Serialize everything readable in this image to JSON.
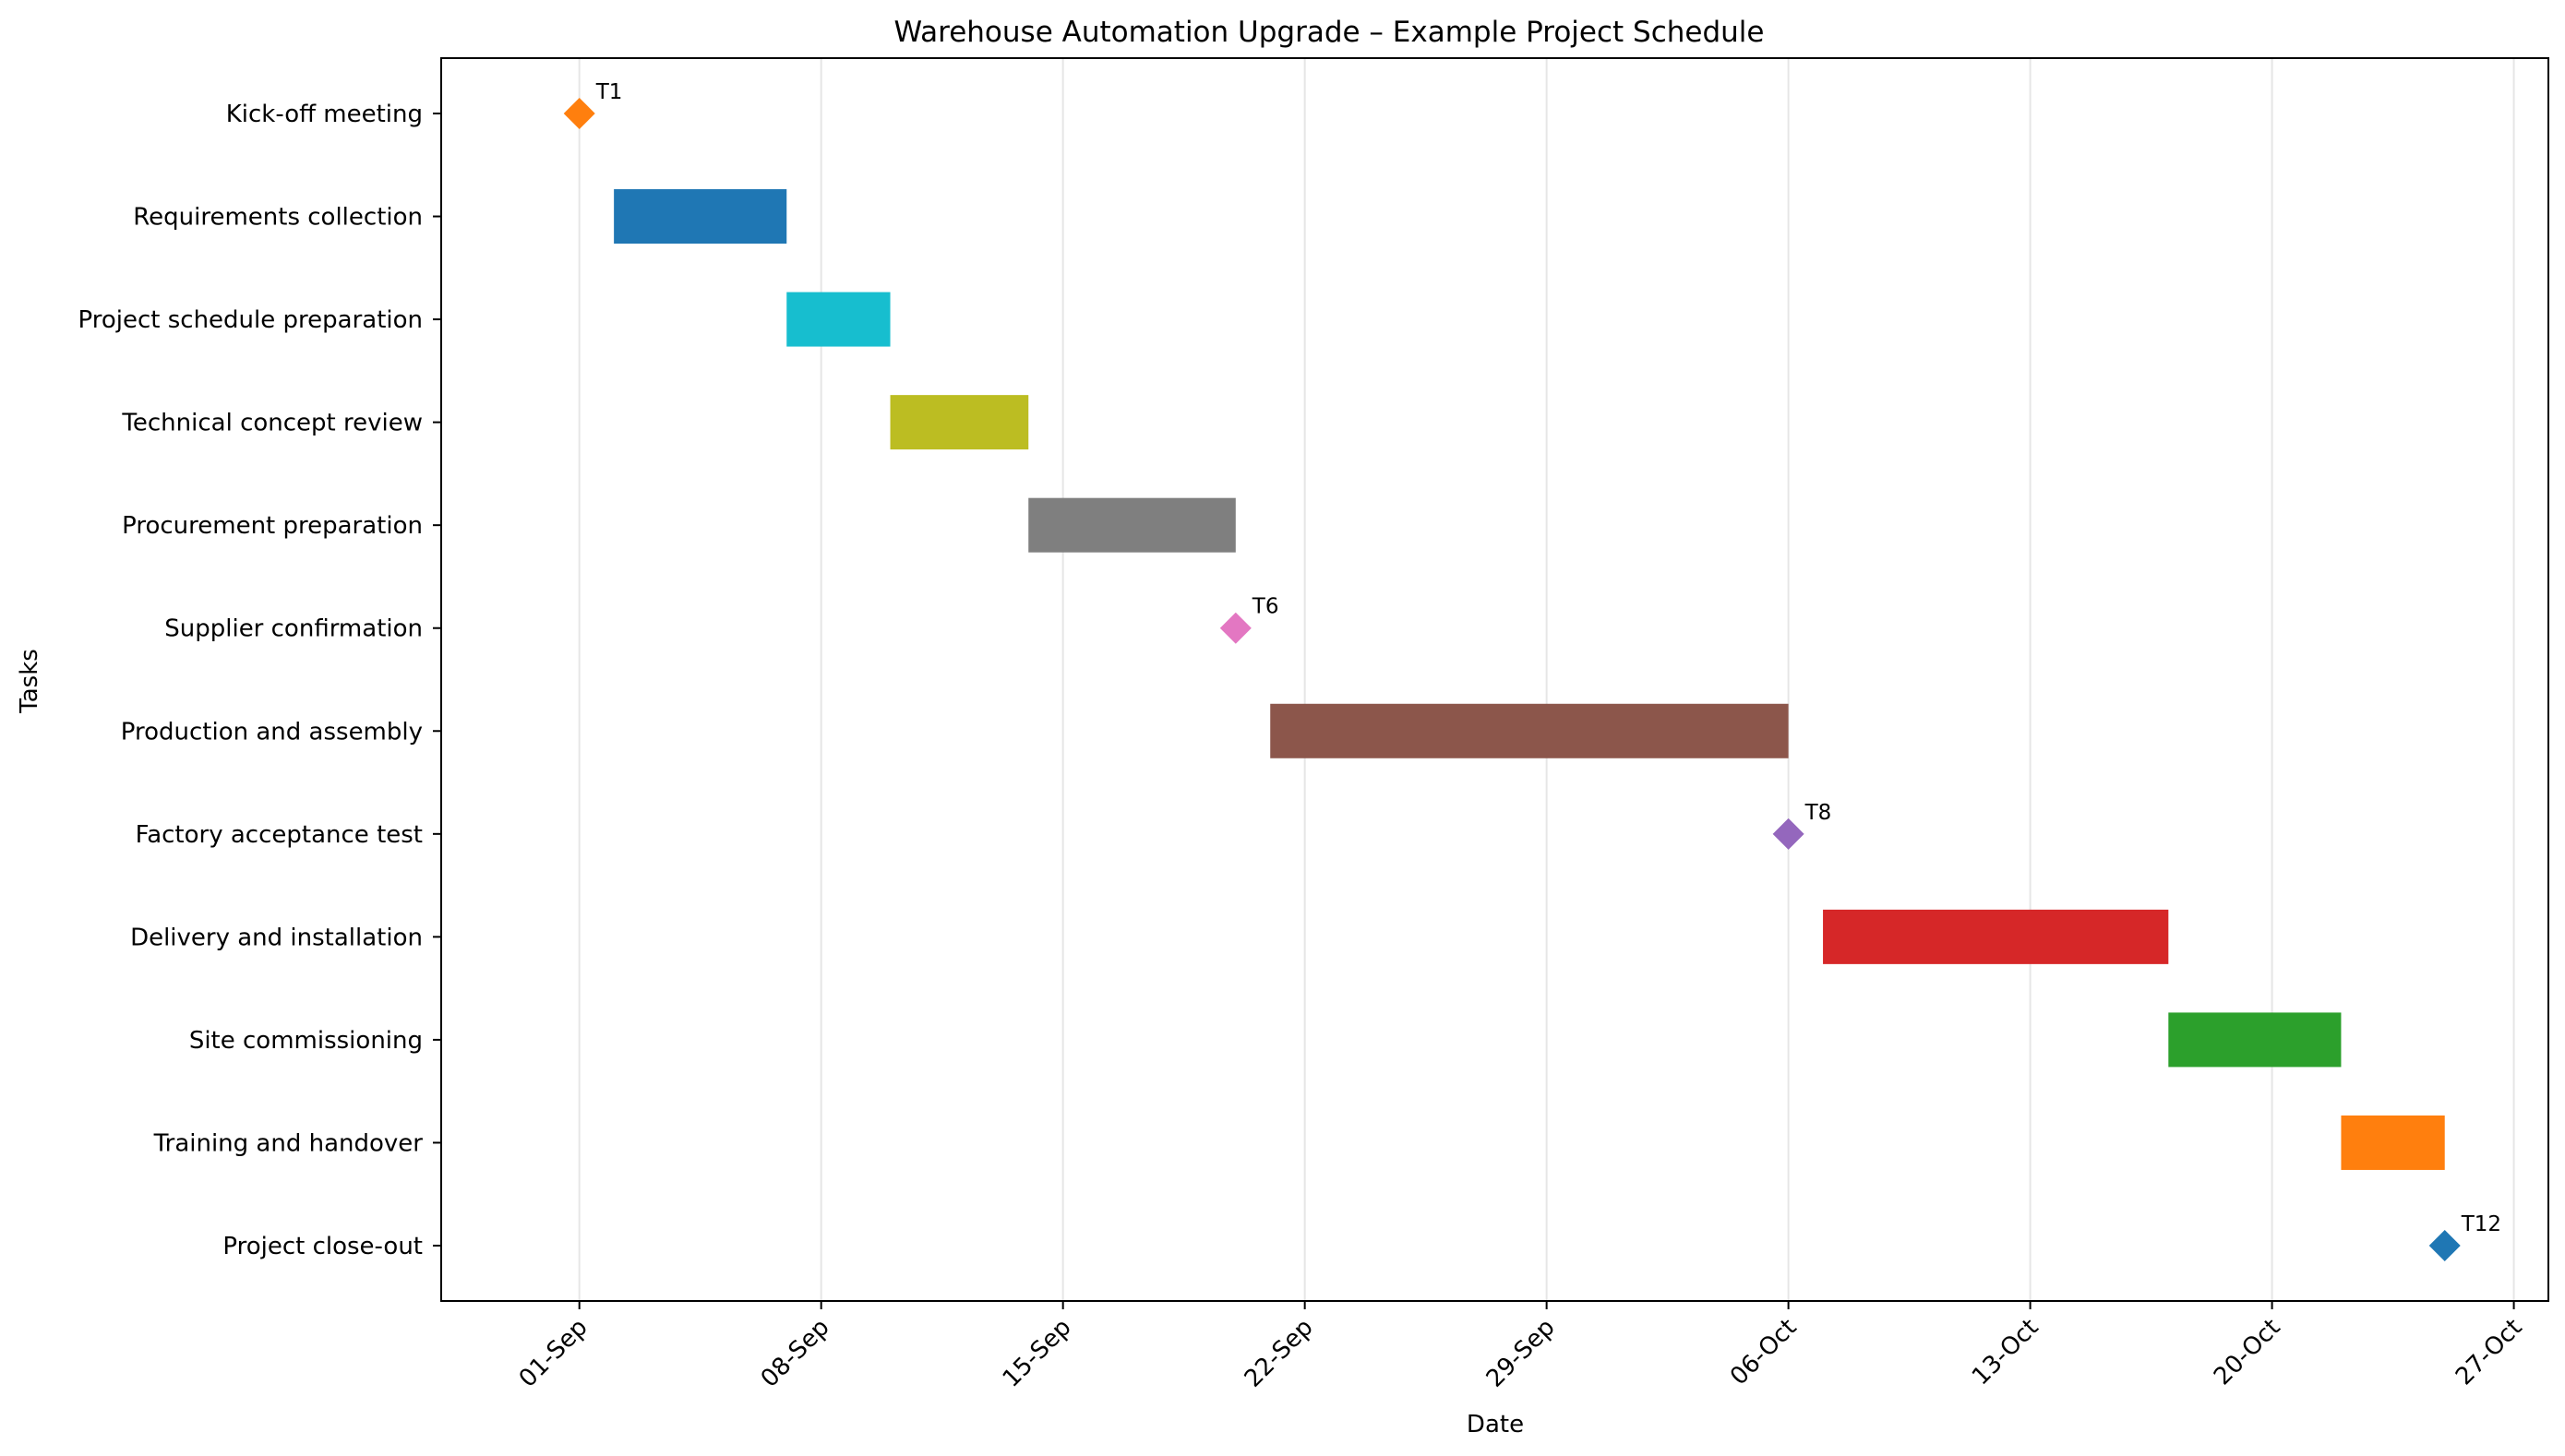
{
  "chart_data": {
    "type": "gantt",
    "title": "Warehouse Automation Upgrade – Example Project Schedule",
    "xlabel": "Date",
    "ylabel": "Tasks",
    "xlim": [
      "2023-08-28",
      "2023-10-28"
    ],
    "grid": "vertical",
    "x_ticks": [
      {
        "date": "2023-09-01",
        "label": "01-Sep"
      },
      {
        "date": "2023-09-08",
        "label": "08-Sep"
      },
      {
        "date": "2023-09-15",
        "label": "15-Sep"
      },
      {
        "date": "2023-09-22",
        "label": "22-Sep"
      },
      {
        "date": "2023-09-29",
        "label": "29-Sep"
      },
      {
        "date": "2023-10-06",
        "label": "06-Oct"
      },
      {
        "date": "2023-10-13",
        "label": "13-Oct"
      },
      {
        "date": "2023-10-20",
        "label": "20-Oct"
      },
      {
        "date": "2023-10-27",
        "label": "27-Oct"
      }
    ],
    "tasks": [
      {
        "name": "Kick-off meeting",
        "start": "2023-09-01",
        "end": "2023-09-01",
        "milestone": true,
        "label": "T1",
        "color": "#ff7f0e"
      },
      {
        "name": "Requirements collection",
        "start": "2023-09-02",
        "end": "2023-09-07",
        "milestone": false,
        "color": "#1f77b4"
      },
      {
        "name": "Project schedule preparation",
        "start": "2023-09-07",
        "end": "2023-09-10",
        "milestone": false,
        "color": "#17becf"
      },
      {
        "name": "Technical concept review",
        "start": "2023-09-10",
        "end": "2023-09-14",
        "milestone": false,
        "color": "#bcbd22"
      },
      {
        "name": "Procurement preparation",
        "start": "2023-09-14",
        "end": "2023-09-20",
        "milestone": false,
        "color": "#7f7f7f"
      },
      {
        "name": "Supplier confirmation",
        "start": "2023-09-20",
        "end": "2023-09-20",
        "milestone": true,
        "label": "T6",
        "color": "#e377c2"
      },
      {
        "name": "Production and assembly",
        "start": "2023-09-21",
        "end": "2023-10-06",
        "milestone": false,
        "color": "#8c564b"
      },
      {
        "name": "Factory acceptance test",
        "start": "2023-10-06",
        "end": "2023-10-06",
        "milestone": true,
        "label": "T8",
        "color": "#9467bd"
      },
      {
        "name": "Delivery and installation",
        "start": "2023-10-07",
        "end": "2023-10-17",
        "milestone": false,
        "color": "#d62728"
      },
      {
        "name": "Site commissioning",
        "start": "2023-10-17",
        "end": "2023-10-22",
        "milestone": false,
        "color": "#2ca02c"
      },
      {
        "name": "Training and handover",
        "start": "2023-10-22",
        "end": "2023-10-25",
        "milestone": false,
        "color": "#ff7f0e"
      },
      {
        "name": "Project close-out",
        "start": "2023-10-25",
        "end": "2023-10-25",
        "milestone": true,
        "label": "T12",
        "color": "#1f77b4"
      }
    ]
  }
}
